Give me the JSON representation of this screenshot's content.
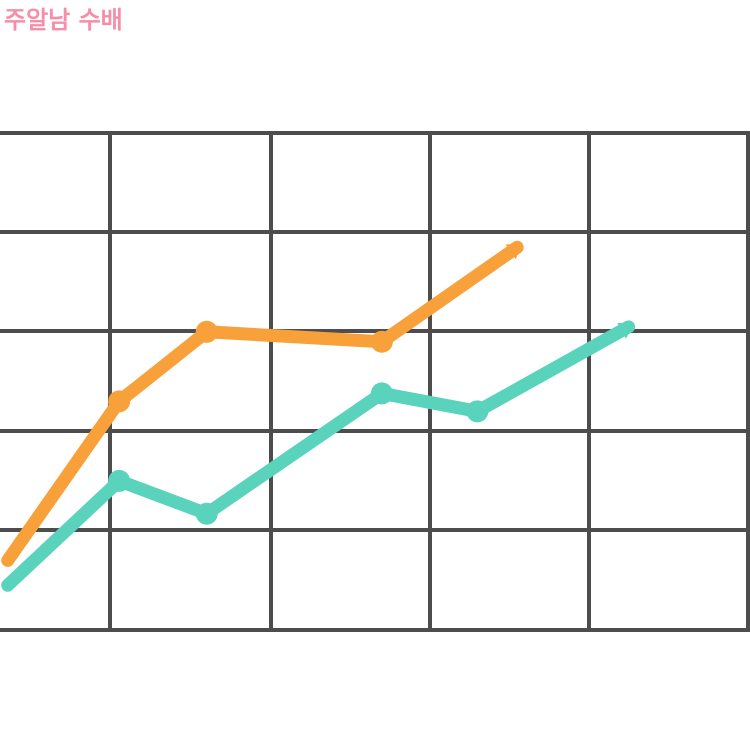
{
  "title": "주알남 수배",
  "chart_data": {
    "type": "line",
    "title": "주알남 수배",
    "xlabel": "",
    "ylabel": "",
    "xlim": [
      0,
      5
    ],
    "ylim": [
      0,
      5
    ],
    "grid": true,
    "grid_color": "#4d4d4d",
    "series": [
      {
        "color": "#f8a03a",
        "markers": true,
        "end_arrow": true,
        "points": [
          [
            0.35,
            0.7
          ],
          [
            1.05,
            2.3
          ],
          [
            1.6,
            3.0
          ],
          [
            2.7,
            2.9
          ],
          [
            3.55,
            3.85
          ]
        ]
      },
      {
        "color": "#5ad3bc",
        "markers": true,
        "end_arrow": true,
        "points": [
          [
            0.35,
            0.45
          ],
          [
            1.05,
            1.5
          ],
          [
            1.6,
            1.17
          ],
          [
            2.7,
            2.38
          ],
          [
            3.3,
            2.2
          ],
          [
            4.25,
            3.05
          ]
        ]
      }
    ]
  }
}
